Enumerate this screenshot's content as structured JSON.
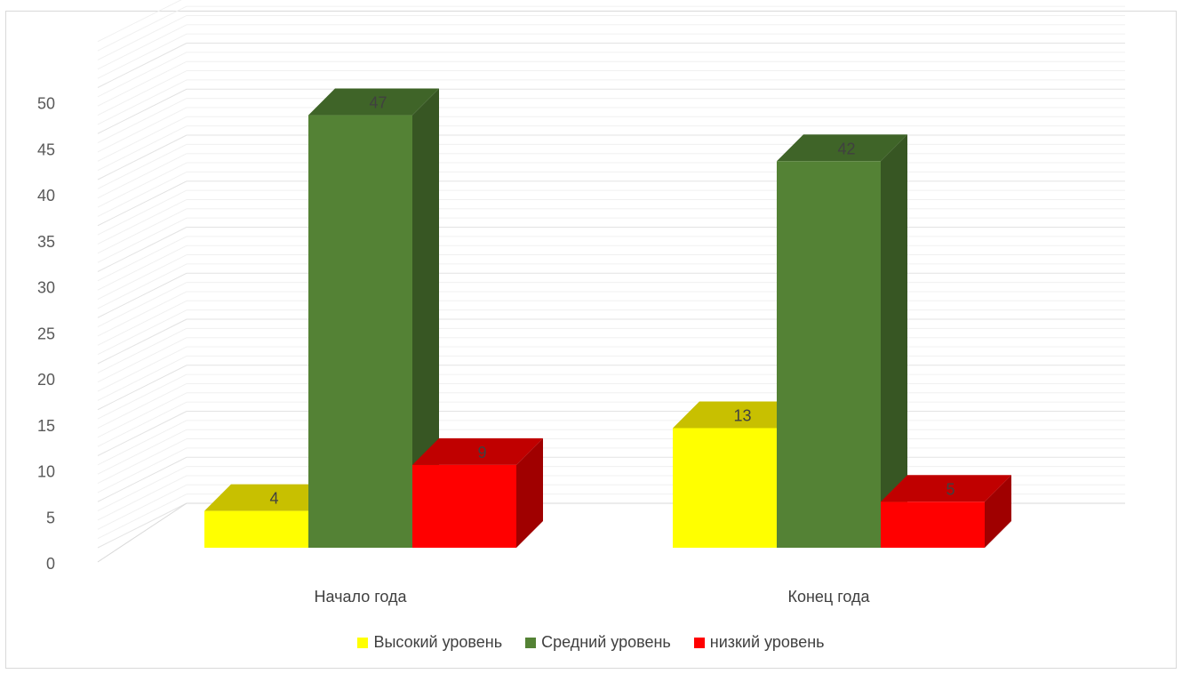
{
  "chart_data": {
    "type": "bar",
    "title": "",
    "xlabel": "",
    "ylabel": "",
    "categories": [
      "Начало года",
      "Конец года"
    ],
    "series": [
      {
        "name": "Высокий уровень",
        "values": [
          4,
          13
        ],
        "color": "#ffff00",
        "top_color": "#c8c000",
        "side_color": "#b0a800"
      },
      {
        "name": "Средний уровень",
        "values": [
          47,
          42
        ],
        "color": "#548235",
        "top_color": "#3f6428",
        "side_color": "#375623"
      },
      {
        "name": "низкий уровень",
        "values": [
          9,
          5
        ],
        "color": "#ff0000",
        "top_color": "#c00000",
        "side_color": "#a00000"
      }
    ],
    "ylim": [
      0,
      50
    ],
    "yticks": [
      0,
      5,
      10,
      15,
      20,
      25,
      30,
      35,
      40,
      45,
      50
    ],
    "grid": true,
    "legend": "bottom",
    "style": "3d"
  }
}
